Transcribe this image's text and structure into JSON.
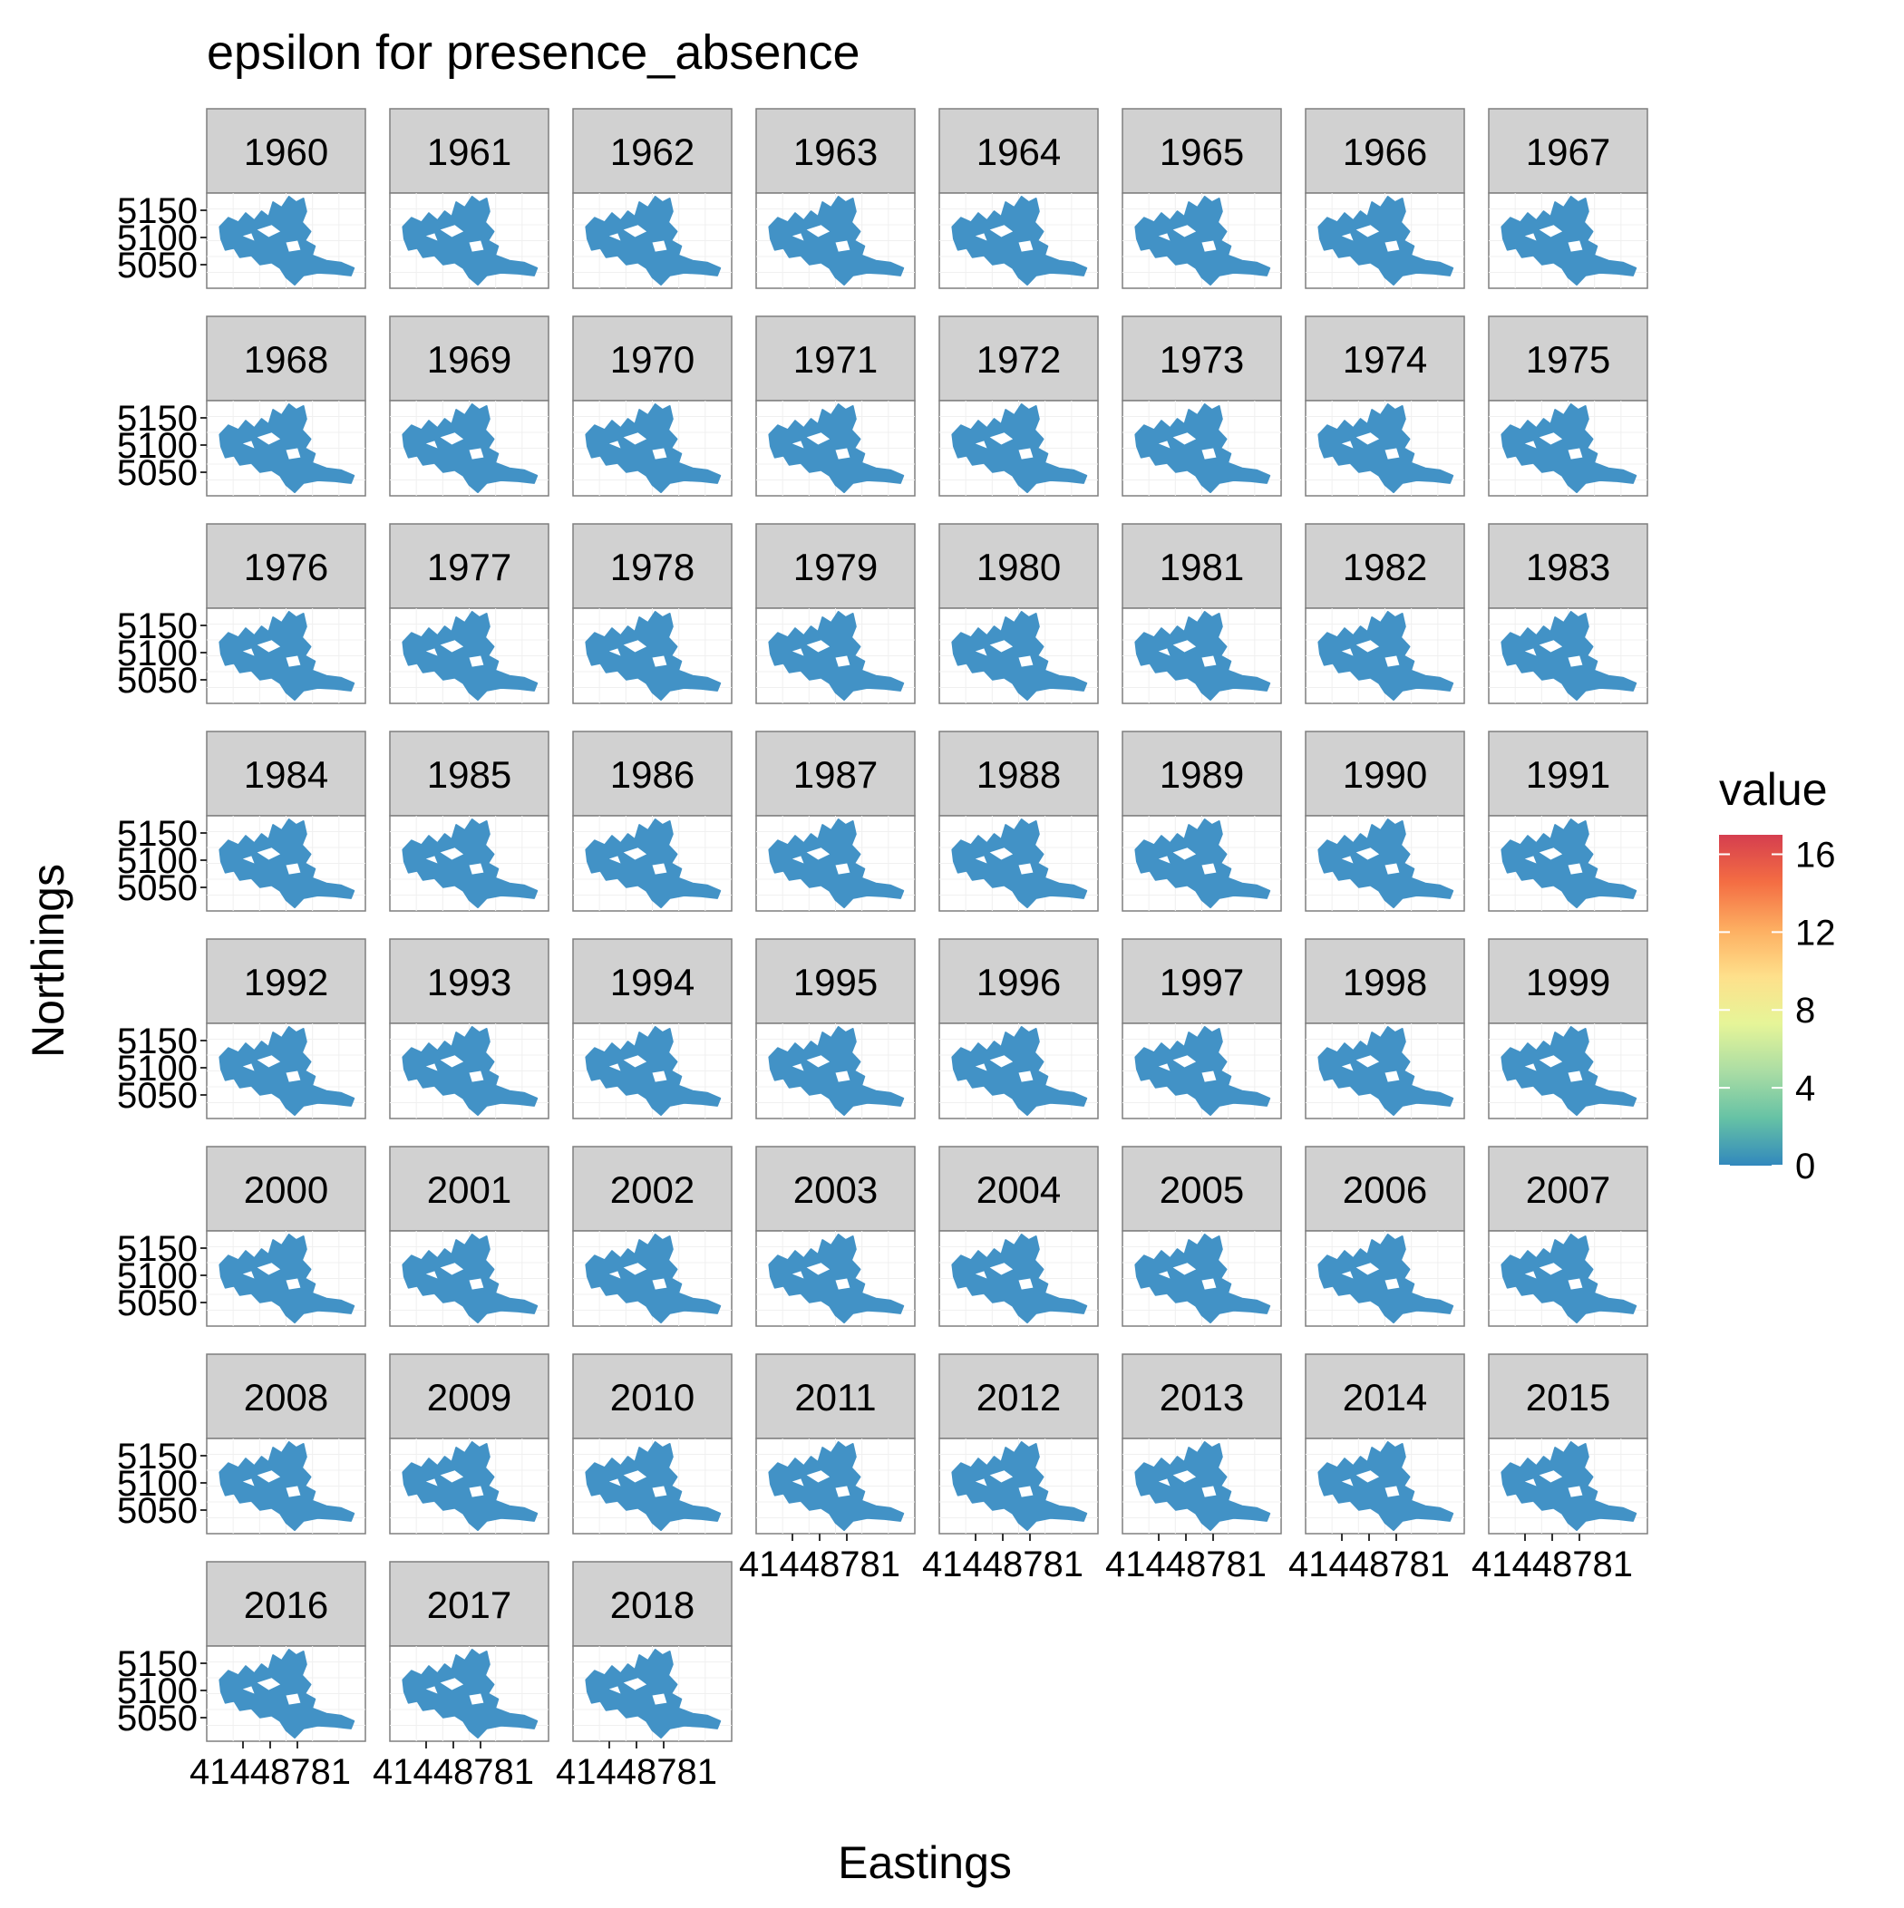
{
  "chart_data": {
    "type": "map",
    "title": "epsilon for presence_absence",
    "xlabel": "Eastings",
    "ylabel": "Northings",
    "facets": [
      "1960",
      "1961",
      "1962",
      "1963",
      "1964",
      "1965",
      "1966",
      "1967",
      "1968",
      "1969",
      "1970",
      "1971",
      "1972",
      "1973",
      "1974",
      "1975",
      "1976",
      "1977",
      "1978",
      "1979",
      "1980",
      "1981",
      "1982",
      "1983",
      "1984",
      "1985",
      "1986",
      "1987",
      "1988",
      "1989",
      "1990",
      "1991",
      "1992",
      "1993",
      "1994",
      "1995",
      "1996",
      "1997",
      "1998",
      "1999",
      "2000",
      "2001",
      "2002",
      "2003",
      "2004",
      "2005",
      "2006",
      "2007",
      "2008",
      "2009",
      "2010",
      "2011",
      "2012",
      "2013",
      "2014",
      "2015",
      "2016",
      "2017",
      "2018"
    ],
    "y_ticks": [
      "5150",
      "5100",
      "5050"
    ],
    "x_tick_text": "41448781",
    "x_tick_count": 3,
    "legend": {
      "title": "value",
      "ticks": [
        "16",
        "12",
        "8",
        "4",
        "0"
      ],
      "range": [
        0,
        17
      ],
      "colors": [
        "#3288bd",
        "#66c2a5",
        "#abdda4",
        "#e6f598",
        "#fee08b",
        "#fdae61",
        "#f46d43",
        "#d53e4f"
      ],
      "placement": "right"
    },
    "fill_color": "#4292c6",
    "strip_color": "#d1d1d1",
    "grid": true
  }
}
